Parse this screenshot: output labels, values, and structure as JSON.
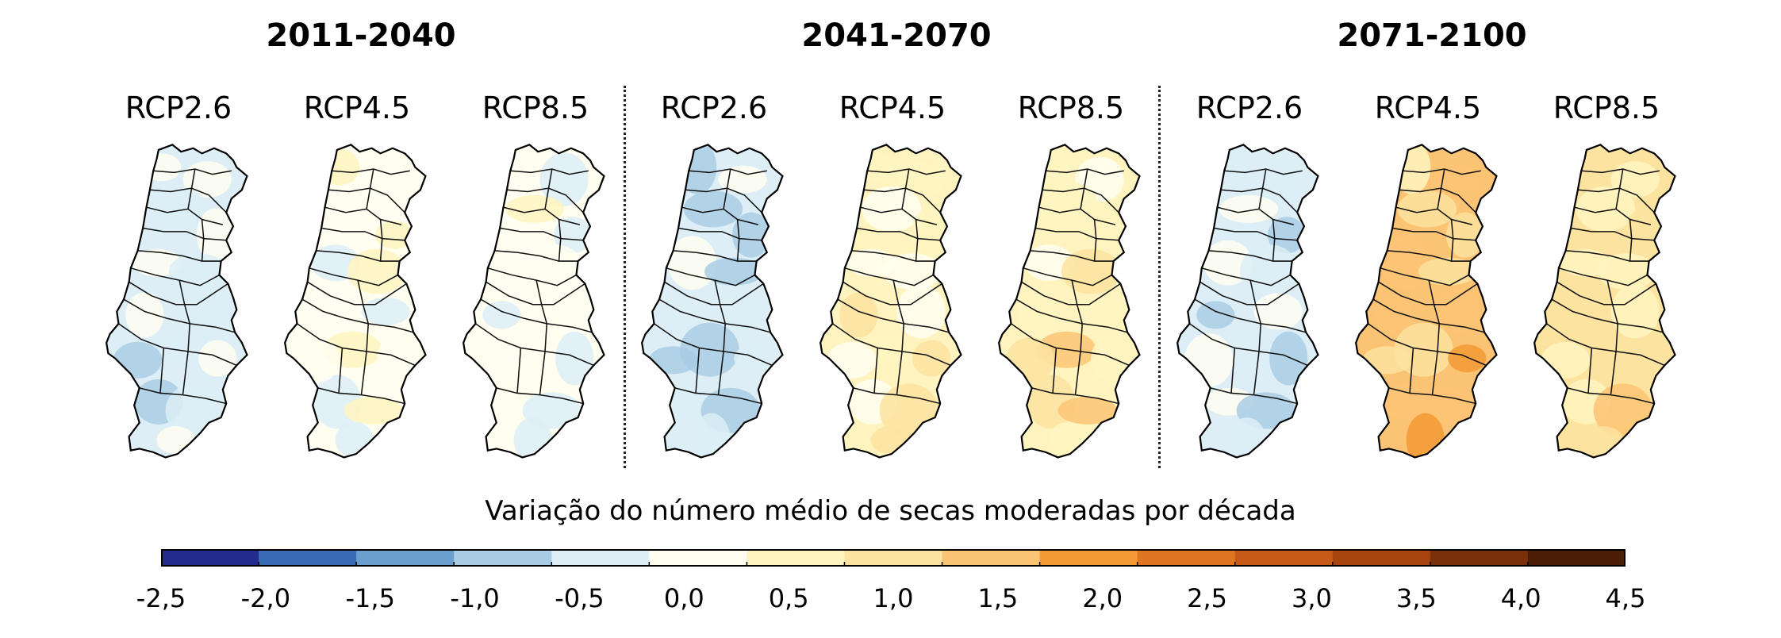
{
  "periods": [
    {
      "label": "2011-2040",
      "scenarios": [
        {
          "label": "RCP2.6",
          "mean_change": -0.2
        },
        {
          "label": "RCP4.5",
          "mean_change": 0.1
        },
        {
          "label": "RCP8.5",
          "mean_change": -0.1
        }
      ]
    },
    {
      "label": "2041-2070",
      "scenarios": [
        {
          "label": "RCP2.6",
          "mean_change": -0.6
        },
        {
          "label": "RCP4.5",
          "mean_change": 0.5
        },
        {
          "label": "RCP8.5",
          "mean_change": 0.7
        }
      ]
    },
    {
      "label": "2071-2100",
      "scenarios": [
        {
          "label": "RCP2.6",
          "mean_change": -0.4
        },
        {
          "label": "RCP4.5",
          "mean_change": 1.3
        },
        {
          "label": "RCP8.5",
          "mean_change": 0.8
        }
      ]
    }
  ],
  "legend": {
    "title": "Variação do número médio de secas moderadas por década",
    "ticks": [
      "-2,5",
      "-2,0",
      "-1,5",
      "-1,0",
      "-0,5",
      "0,0",
      "0,5",
      "1,0",
      "1,5",
      "2,0",
      "2,5",
      "3,0",
      "3,5",
      "4,0",
      "4,5"
    ],
    "range": [
      -2.5,
      4.5
    ],
    "colors": [
      "#232b8c",
      "#3a6bb5",
      "#6a9fce",
      "#a9cde4",
      "#ddeef6",
      "#fffef0",
      "#fff4bf",
      "#fde3a0",
      "#fbc474",
      "#f39a35",
      "#df7621",
      "#c75a16",
      "#a84410",
      "#7b300c",
      "#4d1e07"
    ]
  }
}
